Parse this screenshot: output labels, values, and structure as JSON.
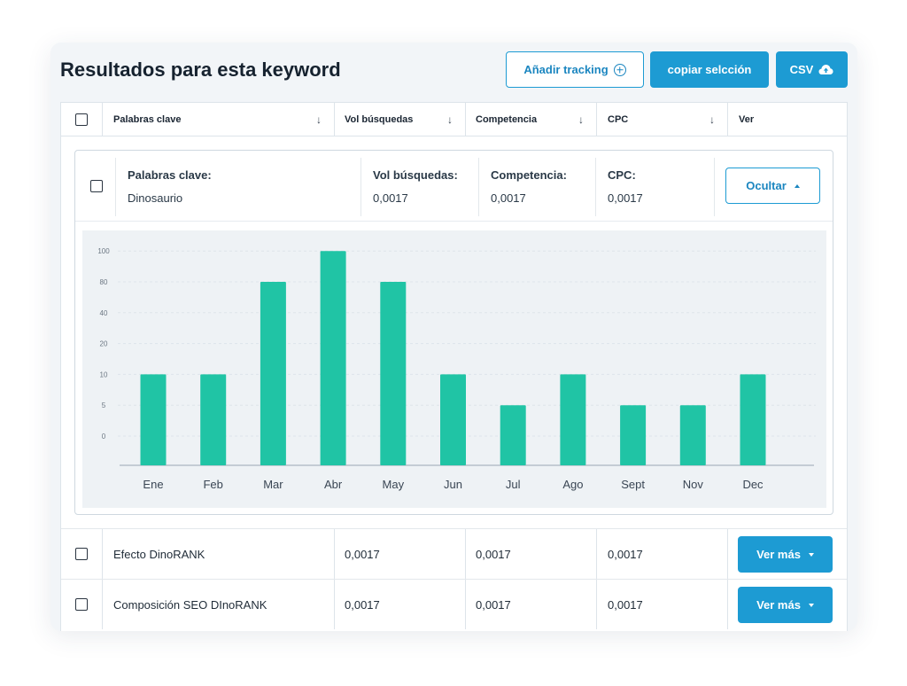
{
  "header": {
    "title": "Resultados para esta keyword",
    "add_tracking_label": "Añadir tracking",
    "copy_selection_label": "copiar selcción",
    "csv_label": "CSV"
  },
  "table": {
    "columns": [
      "Palabras clave",
      "Vol búsquedas",
      "Competencia",
      "CPC",
      "Ver"
    ]
  },
  "expanded": {
    "keyword_label": "Palabras clave:",
    "keyword_value": "Dinosaurio",
    "volume_label": "Vol búsquedas:",
    "volume_value": "0,0017",
    "competition_label": "Competencia:",
    "competition_value": "0,0017",
    "cpc_label": "CPC:",
    "cpc_value": "0,0017",
    "hide_label": "Ocultar"
  },
  "rows": [
    {
      "keyword": "Efecto DinoRANK",
      "volume": "0,0017",
      "competition": "0,0017",
      "cpc": "0,0017",
      "action": "Ver más"
    },
    {
      "keyword": "Composición SEO DInoRANK",
      "volume": "0,0017",
      "competition": "0,0017",
      "cpc": "0,0017",
      "action": "Ver más"
    }
  ],
  "colors": {
    "accent": "#1d9bd3",
    "bar": "#20c4a5"
  },
  "chart_data": {
    "type": "bar",
    "categories": [
      "Ene",
      "Feb",
      "Mar",
      "Abr",
      "May",
      "Jun",
      "Jul",
      "Ago",
      "Sept",
      "Nov",
      "Dec"
    ],
    "values": [
      10,
      10,
      80,
      100,
      80,
      10,
      5,
      10,
      5,
      5,
      10
    ],
    "y_ticks": [
      "100",
      "80",
      "40",
      "20",
      "10",
      "5",
      "0"
    ],
    "grid": true
  }
}
